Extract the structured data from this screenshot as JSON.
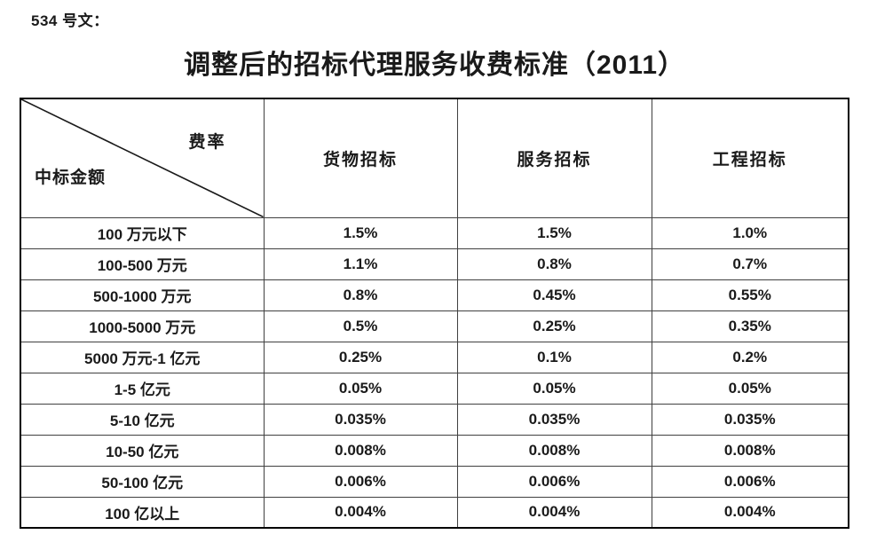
{
  "doc_label": "534 号文：",
  "title": "调整后的招标代理服务收费标准（2011）",
  "table": {
    "corner": {
      "top_right": "费率",
      "bottom_left": "中标金额"
    },
    "columns": [
      "货物招标",
      "服务招标",
      "工程招标"
    ],
    "rows": [
      {
        "label": "100 万元以下",
        "values": [
          "1.5%",
          "1.5%",
          "1.0%"
        ]
      },
      {
        "label": "100-500 万元",
        "values": [
          "1.1%",
          "0.8%",
          "0.7%"
        ]
      },
      {
        "label": "500-1000 万元",
        "values": [
          "0.8%",
          "0.45%",
          "0.55%"
        ]
      },
      {
        "label": "1000-5000 万元",
        "values": [
          "0.5%",
          "0.25%",
          "0.35%"
        ]
      },
      {
        "label": "5000 万元-1 亿元",
        "values": [
          "0.25%",
          "0.1%",
          "0.2%"
        ]
      },
      {
        "label": "1-5 亿元",
        "values": [
          "0.05%",
          "0.05%",
          "0.05%"
        ]
      },
      {
        "label": "5-10 亿元",
        "values": [
          "0.035%",
          "0.035%",
          "0.035%"
        ]
      },
      {
        "label": "10-50 亿元",
        "values": [
          "0.008%",
          "0.008%",
          "0.008%"
        ]
      },
      {
        "label": "50-100 亿元",
        "values": [
          "0.006%",
          "0.006%",
          "0.006%"
        ]
      },
      {
        "label": "100 亿以上",
        "values": [
          "0.004%",
          "0.004%",
          "0.004%"
        ]
      }
    ]
  },
  "colors": {
    "background": "#ffffff",
    "text": "#1a1a1a",
    "border_inner": "#404040",
    "border_outer": "#000000"
  }
}
